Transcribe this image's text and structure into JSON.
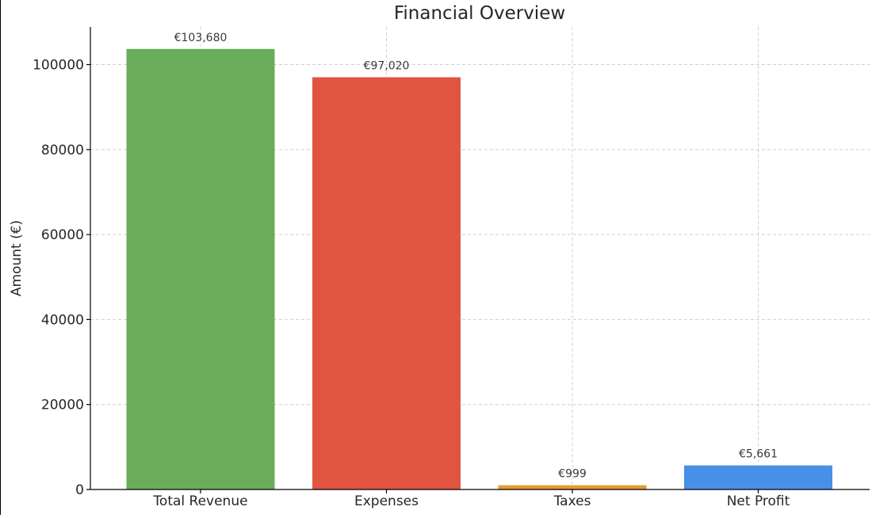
{
  "chart_data": {
    "type": "bar",
    "title": "Financial Overview",
    "xlabel": "",
    "ylabel": "Amount (€)",
    "categories": [
      "Total Revenue",
      "Expenses",
      "Taxes",
      "Net Profit"
    ],
    "values": [
      103680,
      97020,
      999,
      5661
    ],
    "data_labels": [
      "€103,680",
      "€97,020",
      "€999",
      "€5,661"
    ],
    "colors": [
      "#69ad5b",
      "#e05441",
      "#e49a31",
      "#4790e8"
    ],
    "ylim": [
      0,
      108864
    ],
    "yticks": [
      0,
      20000,
      40000,
      60000,
      80000,
      100000
    ],
    "ytick_labels": [
      "0",
      "20000",
      "40000",
      "60000",
      "80000",
      "100000"
    ],
    "grid": true
  }
}
